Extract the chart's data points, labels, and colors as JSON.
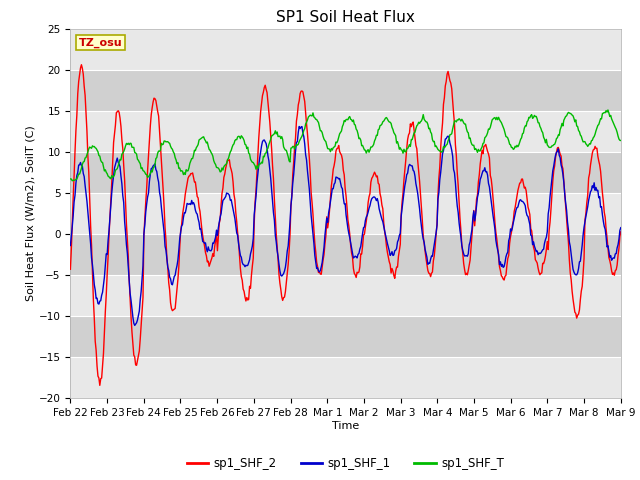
{
  "title": "SP1 Soil Heat Flux",
  "xlabel": "Time",
  "ylabel": "Soil Heat Flux (W/m2), SoilT (C)",
  "ylim": [
    -20,
    25
  ],
  "line_colors": {
    "sp1_SHF_2": "#ff0000",
    "sp1_SHF_1": "#0000cc",
    "sp1_SHF_T": "#00bb00"
  },
  "legend_labels": [
    "sp1_SHF_2",
    "sp1_SHF_1",
    "sp1_SHF_T"
  ],
  "tz_label": "TZ_osu",
  "tz_label_color": "#cc0000",
  "tz_box_color": "#ffffcc",
  "tz_box_edge": "#aaaa00",
  "background_color": "#ffffff",
  "plot_bg_color": "#d8d8d8",
  "band_light_color": "#e8e8e8",
  "band_dark_color": "#d0d0d0",
  "grid_color": "#ffffff",
  "title_fontsize": 11,
  "axis_label_fontsize": 8,
  "tick_label_fontsize": 7.5,
  "legend_fontsize": 8.5,
  "x_tick_labels": [
    "Feb 22",
    "Feb 23",
    "Feb 24",
    "Feb 25",
    "Feb 26",
    "Feb 27",
    "Feb 28",
    "Mar 1",
    "Mar 2",
    "Mar 3",
    "Mar 4",
    "Mar 5",
    "Mar 6",
    "Mar 7",
    "Mar 8",
    "Mar 9"
  ],
  "n_points": 600
}
